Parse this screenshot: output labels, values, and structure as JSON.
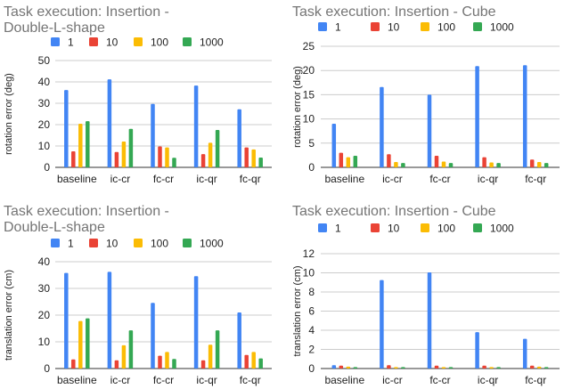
{
  "chart_data": [
    {
      "type": "bar",
      "title_lines": [
        "Task execution: Insertion -",
        "Double-L-shape"
      ],
      "ylabel": "rotation error (deg)",
      "xlabel": "",
      "ylim": [
        0,
        50
      ],
      "yticks": [
        0,
        10,
        20,
        30,
        40,
        50
      ],
      "categories": [
        "baseline",
        "ic-cr",
        "fc-cr",
        "ic-qr",
        "fc-qr"
      ],
      "series": [
        {
          "name": "1",
          "color": "#4285f4",
          "values": [
            36.2,
            41.2,
            29.7,
            38.3,
            27.2
          ]
        },
        {
          "name": "10",
          "color": "#ea4335",
          "values": [
            7.5,
            7.2,
            9.8,
            6.2,
            9.3
          ]
        },
        {
          "name": "100",
          "color": "#fbbc04",
          "values": [
            20.4,
            12.1,
            9.3,
            11.5,
            8.4
          ]
        },
        {
          "name": "1000",
          "color": "#34a853",
          "values": [
            21.6,
            18.0,
            4.5,
            17.5,
            4.6
          ]
        }
      ],
      "grid": true,
      "legend": "top-left"
    },
    {
      "type": "bar",
      "title_lines": [
        "Task execution: Insertion - Cube"
      ],
      "ylabel": "rotation error (deg)",
      "xlabel": "",
      "ylim": [
        0,
        25
      ],
      "yticks": [
        0,
        5,
        10,
        15,
        20,
        25
      ],
      "categories": [
        "baseline",
        "ic-cr",
        "fc-cr",
        "ic-qr",
        "fc-qr"
      ],
      "series": [
        {
          "name": "1",
          "color": "#4285f4",
          "values": [
            9.0,
            16.6,
            15.0,
            20.9,
            21.1
          ]
        },
        {
          "name": "10",
          "color": "#ea4335",
          "values": [
            3.0,
            2.7,
            2.4,
            2.1,
            1.6
          ]
        },
        {
          "name": "100",
          "color": "#fbbc04",
          "values": [
            2.1,
            1.1,
            1.2,
            1.0,
            1.1
          ]
        },
        {
          "name": "1000",
          "color": "#34a853",
          "values": [
            2.4,
            0.9,
            0.9,
            0.9,
            0.9
          ]
        }
      ],
      "grid": true,
      "legend": "top-left"
    },
    {
      "type": "bar",
      "title_lines": [
        "Task execution: Insertion -",
        "Double-L-shape"
      ],
      "ylabel": "translation error (cm)",
      "xlabel": "",
      "ylim": [
        0,
        40
      ],
      "yticks": [
        0,
        10,
        20,
        30,
        40
      ],
      "categories": [
        "baseline",
        "ic-cr",
        "fc-cr",
        "ic-qr",
        "fc-qr"
      ],
      "series": [
        {
          "name": "1",
          "color": "#4285f4",
          "values": [
            35.8,
            36.2,
            24.6,
            34.6,
            21.0
          ]
        },
        {
          "name": "10",
          "color": "#ea4335",
          "values": [
            3.4,
            3.1,
            4.8,
            3.1,
            5.1
          ]
        },
        {
          "name": "100",
          "color": "#fbbc04",
          "values": [
            17.8,
            8.7,
            6.2,
            8.9,
            6.2
          ]
        },
        {
          "name": "1000",
          "color": "#34a853",
          "values": [
            18.8,
            14.3,
            3.6,
            14.3,
            3.8
          ]
        }
      ],
      "grid": true,
      "legend": "top-left"
    },
    {
      "type": "bar",
      "title_lines": [
        "Task execution: Insertion - Cube"
      ],
      "ylabel": "translation error (cm)",
      "xlabel": "",
      "ylim": [
        0,
        12
      ],
      "yticks": [
        0,
        2,
        4,
        6,
        8,
        10,
        12
      ],
      "categories": [
        "baseline",
        "ic-cr",
        "fc-cr",
        "ic-qr",
        "fc-qr"
      ],
      "series": [
        {
          "name": "1",
          "color": "#4285f4",
          "values": [
            0.35,
            9.25,
            10.05,
            3.8,
            3.1
          ]
        },
        {
          "name": "10",
          "color": "#ea4335",
          "values": [
            0.3,
            0.35,
            0.3,
            0.3,
            0.3
          ]
        },
        {
          "name": "100",
          "color": "#fbbc04",
          "values": [
            0.2,
            0.15,
            0.15,
            0.15,
            0.2
          ]
        },
        {
          "name": "1000",
          "color": "#34a853",
          "values": [
            0.15,
            0.15,
            0.15,
            0.15,
            0.15
          ]
        }
      ],
      "grid": true,
      "legend": "top-left"
    }
  ]
}
